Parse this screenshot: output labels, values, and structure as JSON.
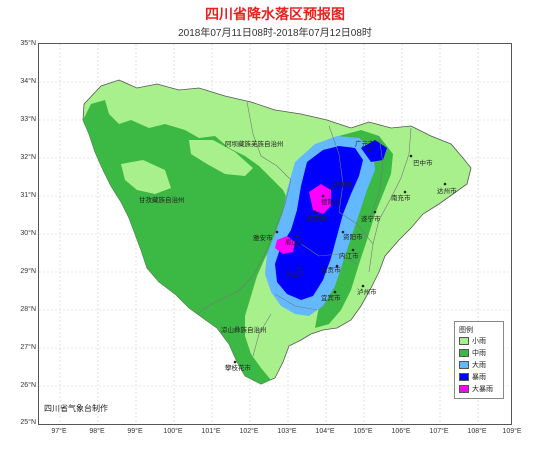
{
  "title": "四川省降水落区预报图",
  "subtitle": "2018年07月11日08时-2018年07月12日08时",
  "credit": "四川省气象台制作",
  "axes": {
    "lat_labels": [
      "35°N",
      "34°N",
      "33°N",
      "32°N",
      "31°N",
      "30°N",
      "29°N",
      "28°N",
      "27°N",
      "26°N",
      "25°N"
    ],
    "lon_labels": [
      "97°E",
      "98°E",
      "99°E",
      "100°E",
      "101°E",
      "102°E",
      "103°E",
      "104°E",
      "105°E",
      "106°E",
      "107°E",
      "108°E",
      "109°E"
    ]
  },
  "legend": {
    "title": "图例",
    "items": [
      {
        "label": "小雨",
        "color": "#a8f08c"
      },
      {
        "label": "中雨",
        "color": "#3cb845"
      },
      {
        "label": "大雨",
        "color": "#63b8ff"
      },
      {
        "label": "暴雨",
        "color": "#0000ff"
      },
      {
        "label": "大暴雨",
        "color": "#ff00ff"
      }
    ]
  },
  "regions": {
    "aba": "阿坝藏族羌族自治州",
    "ganzi": "甘孜藏族自治州",
    "liangshan": "凉山彝族自治州"
  },
  "cities": {
    "bazhong": "巴中市",
    "dazhou": "达州市",
    "nanchong": "南充市",
    "suining": "遂宁市",
    "mianyang": "绵阳市",
    "chengdu": "成都市",
    "ziyang": "资阳市",
    "neijiang": "内江市",
    "zigong": "自贡市",
    "yibin": "宜宾市",
    "luzhou": "泸州市",
    "meishan": "眉山市",
    "leshan": "乐山市",
    "yaan": "雅安市",
    "panzhihua": "攀枝花市",
    "guangyuan": "广元市",
    "deyang": "德阳市"
  }
}
